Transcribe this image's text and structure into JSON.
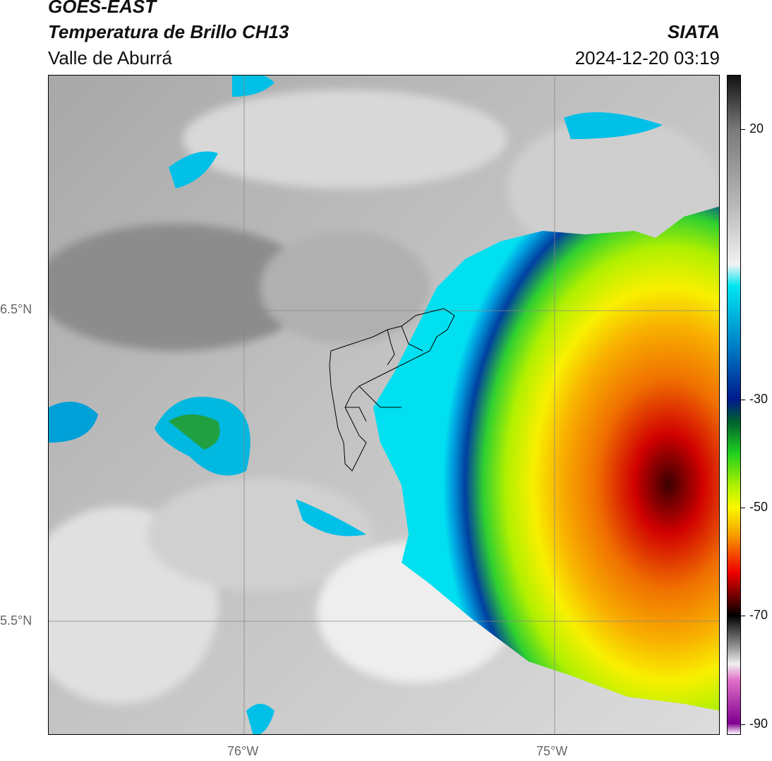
{
  "header": {
    "satellite": "GOES-EAST",
    "product": "Temperatura de Brillo CH13",
    "region": "Valle de Aburrá",
    "org": "SIATA",
    "datetime": "2024-12-20 03:19"
  },
  "axes": {
    "lat_labels": [
      "6.5°N",
      "5.5°N"
    ],
    "lon_labels": [
      "76°W",
      "75°W"
    ]
  },
  "colorbar": {
    "ticks": [
      "20",
      "-30",
      "-50",
      "-70",
      "-90"
    ],
    "tick_values": [
      20,
      -30,
      -50,
      -70,
      -90
    ],
    "range": [
      -92,
      30
    ],
    "stops": [
      {
        "v": 30,
        "c": "#111111"
      },
      {
        "v": 20,
        "c": "#7a7a7a"
      },
      {
        "v": 5,
        "c": "#bdbdbd"
      },
      {
        "v": -5,
        "c": "#f2f2f2"
      },
      {
        "v": -9,
        "c": "#00e5f0"
      },
      {
        "v": -20,
        "c": "#0080c8"
      },
      {
        "v": -30,
        "c": "#001a8c"
      },
      {
        "v": -34,
        "c": "#006030"
      },
      {
        "v": -40,
        "c": "#20d020"
      },
      {
        "v": -46,
        "c": "#b0f000"
      },
      {
        "v": -50,
        "c": "#f8f800"
      },
      {
        "v": -55,
        "c": "#f8a000"
      },
      {
        "v": -62,
        "c": "#f00000"
      },
      {
        "v": -68,
        "c": "#400000"
      },
      {
        "v": -70,
        "c": "#000000"
      },
      {
        "v": -76,
        "c": "#9a9a9a"
      },
      {
        "v": -79,
        "c": "#f0f0f0"
      },
      {
        "v": -82,
        "c": "#e070c8"
      },
      {
        "v": -90,
        "c": "#800090"
      },
      {
        "v": -92,
        "c": "#ffffff"
      }
    ]
  }
}
